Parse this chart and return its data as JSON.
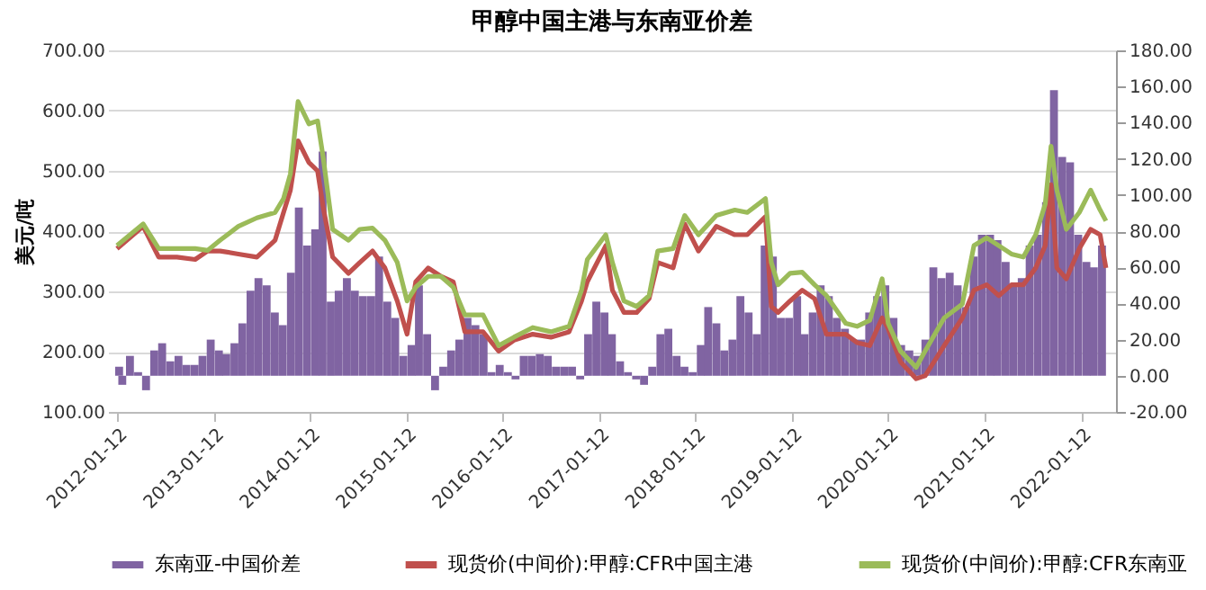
{
  "chart_data": {
    "type": "line",
    "title": "甲醇中国主港与东南亚价差",
    "ylabel": "美元/吨",
    "xlim": [
      "2012-01-12",
      "2022-04-20"
    ],
    "xticks": [
      "2012-01-12",
      "2013-01-12",
      "2014-01-12",
      "2015-01-12",
      "2016-01-12",
      "2017-01-12",
      "2018-01-12",
      "2019-01-12",
      "2020-01-12",
      "2021-01-12",
      "2022-01-12"
    ],
    "ylim": [
      100,
      700
    ],
    "yticks": [
      {
        "value": 100,
        "label": "100.00"
      },
      {
        "value": 200,
        "label": "200.00"
      },
      {
        "value": 300,
        "label": "300.00"
      },
      {
        "value": 400,
        "label": "400.00"
      },
      {
        "value": 500,
        "label": "500.00"
      },
      {
        "value": 600,
        "label": "600.00"
      },
      {
        "value": 700,
        "label": "700.00"
      }
    ],
    "y2lim": [
      -20,
      180
    ],
    "y2ticks": [
      {
        "value": -20,
        "label": "-20.00"
      },
      {
        "value": 0,
        "label": "0.00"
      },
      {
        "value": 20,
        "label": "20.00"
      },
      {
        "value": 40,
        "label": "40.00"
      },
      {
        "value": 60,
        "label": "60.00"
      },
      {
        "value": 80,
        "label": "80.00"
      },
      {
        "value": 100,
        "label": "100.00"
      },
      {
        "value": 120,
        "label": "120.00"
      },
      {
        "value": 140,
        "label": "140.00"
      },
      {
        "value": 160,
        "label": "160.00"
      },
      {
        "value": 180,
        "label": "180.00"
      }
    ],
    "grid": "y",
    "legend": "bottom",
    "x": [
      "2012-01-12",
      "2012-04-20",
      "2012-06-18",
      "2012-08-26",
      "2012-11-03",
      "2012-12-20",
      "2013-02-06",
      "2013-04-16",
      "2013-06-25",
      "2013-09-02",
      "2013-10-04",
      "2013-10-30",
      "2013-11-28",
      "2014-01-08",
      "2014-02-10",
      "2014-03-03",
      "2014-04-08",
      "2014-06-07",
      "2014-07-20",
      "2014-09-06",
      "2014-10-23",
      "2014-12-09",
      "2015-01-15",
      "2015-02-17",
      "2015-04-05",
      "2015-05-23",
      "2015-07-09",
      "2015-08-22",
      "2015-10-30",
      "2015-12-28",
      "2016-02-24",
      "2016-05-05",
      "2016-07-13",
      "2016-09-20",
      "2016-11-06",
      "2016-11-28",
      "2017-02-06",
      "2017-03-03",
      "2017-04-16",
      "2017-06-03",
      "2017-07-20",
      "2017-08-22",
      "2017-10-19",
      "2017-12-02",
      "2018-01-23",
      "2018-04-01",
      "2018-06-10",
      "2018-07-27",
      "2018-10-04",
      "2018-10-26",
      "2018-11-21",
      "2019-01-05",
      "2019-02-20",
      "2019-04-08",
      "2019-05-23",
      "2019-08-04",
      "2019-09-16",
      "2019-11-03",
      "2019-12-20",
      "2020-01-12",
      "2020-02-28",
      "2020-04-27",
      "2020-05-31",
      "2020-08-11",
      "2020-10-19",
      "2020-12-02",
      "2021-01-19",
      "2021-03-06",
      "2021-04-23",
      "2021-06-07",
      "2021-07-24",
      "2021-08-29",
      "2021-09-20",
      "2021-10-12",
      "2021-11-17",
      "2022-01-05",
      "2022-02-17",
      "2022-03-25",
      "2022-04-16"
    ],
    "series": [
      {
        "name": "东南亚-中国价差",
        "type": "bar",
        "axis": "y2",
        "color": "#8064a2",
        "x": [
          "2012-01-20",
          "2012-02",
          "2012-03",
          "2012-04",
          "2012-05",
          "2012-06",
          "2012-07",
          "2012-08",
          "2012-09",
          "2012-10",
          "2012-11",
          "2012-12",
          "2013-01",
          "2013-02",
          "2013-03",
          "2013-04",
          "2013-05",
          "2013-06",
          "2013-07",
          "2013-08",
          "2013-09",
          "2013-10",
          "2013-11",
          "2013-12",
          "2014-01",
          "2014-02",
          "2014-03",
          "2014-04",
          "2014-05",
          "2014-06",
          "2014-07",
          "2014-08",
          "2014-09",
          "2014-10",
          "2014-11",
          "2014-12",
          "2015-01",
          "2015-02",
          "2015-03",
          "2015-04",
          "2015-05",
          "2015-06",
          "2015-07",
          "2015-08",
          "2015-09",
          "2015-10",
          "2015-11",
          "2015-12",
          "2016-01",
          "2016-02",
          "2016-03",
          "2016-04",
          "2016-05",
          "2016-06",
          "2016-07",
          "2016-08",
          "2016-09",
          "2016-10",
          "2016-11",
          "2016-12",
          "2017-01",
          "2017-02",
          "2017-03",
          "2017-04",
          "2017-05",
          "2017-06",
          "2017-07",
          "2017-08",
          "2017-09",
          "2017-10",
          "2017-11",
          "2017-12",
          "2018-01",
          "2018-02",
          "2018-03",
          "2018-04",
          "2018-05",
          "2018-06",
          "2018-07",
          "2018-08",
          "2018-09",
          "2018-10",
          "2018-11",
          "2018-12",
          "2019-01",
          "2019-02",
          "2019-03",
          "2019-04",
          "2019-05",
          "2019-06",
          "2019-07",
          "2019-08",
          "2019-09",
          "2019-10",
          "2019-11",
          "2019-12",
          "2020-01",
          "2020-02",
          "2020-03",
          "2020-04",
          "2020-05",
          "2020-06",
          "2020-07",
          "2020-08",
          "2020-09",
          "2020-10",
          "2020-11",
          "2020-12",
          "2021-01",
          "2021-02",
          "2021-03",
          "2021-04",
          "2021-05",
          "2021-06",
          "2021-07",
          "2021-08",
          "2021-09",
          "2021-10",
          "2021-11",
          "2021-12",
          "2022-01",
          "2022-02",
          "2022-03",
          "2022-04"
        ],
        "values": [
          5,
          -5,
          11,
          2,
          -8,
          14,
          18,
          8,
          11,
          6,
          6,
          11,
          20,
          14,
          12,
          18,
          29,
          47,
          54,
          50,
          35,
          28,
          57,
          93,
          72,
          81,
          124,
          41,
          47,
          54,
          47,
          44,
          44,
          66,
          41,
          32,
          11,
          17,
          50,
          23,
          -8,
          5,
          14,
          20,
          32,
          28,
          23,
          2,
          6,
          2,
          -2,
          11,
          11,
          12,
          11,
          5,
          5,
          5,
          -2,
          23,
          41,
          35,
          23,
          8,
          2,
          -2,
          -5,
          5,
          23,
          26,
          11,
          5,
          2,
          17,
          38,
          29,
          14,
          20,
          44,
          35,
          23,
          72,
          66,
          32,
          32,
          44,
          23,
          35,
          50,
          44,
          32,
          26,
          20,
          20,
          35,
          44,
          50,
          32,
          17,
          14,
          11,
          20,
          60,
          54,
          57,
          50,
          38,
          66,
          78,
          78,
          75,
          63,
          50,
          54,
          72,
          78,
          96,
          158,
          121,
          118,
          78,
          63,
          60,
          72
        ]
      },
      {
        "name": "现货价(中间价):甲醇:CFR中国主港",
        "color": "#c0504d",
        "values": [
          371,
          408,
          357,
          357,
          353,
          367,
          367,
          362,
          357,
          385,
          431,
          468,
          550,
          514,
          500,
          440,
          357,
          330,
          348,
          367,
          339,
          284,
          229,
          316,
          339,
          325,
          316,
          233,
          233,
          201,
          219,
          229,
          224,
          233,
          284,
          316,
          376,
          302,
          265,
          265,
          288,
          348,
          339,
          412,
          367,
          408,
          394,
          394,
          424,
          275,
          265,
          284,
          302,
          288,
          229,
          229,
          215,
          210,
          256,
          238,
          183,
          155,
          160,
          210,
          256,
          302,
          311,
          293,
          311,
          311,
          339,
          376,
          477,
          339,
          321,
          371,
          403,
          394,
          339
        ]
      },
      {
        "name": "现货价(中间价):甲醇:CFR东南亚",
        "color": "#9bbb59",
        "values": [
          376,
          412,
          371,
          371,
          371,
          368,
          385,
          408,
          422,
          431,
          454,
          495,
          615,
          578,
          583,
          523,
          403,
          385,
          403,
          405,
          385,
          348,
          284,
          307,
          325,
          325,
          307,
          261,
          261,
          210,
          224,
          240,
          233,
          242,
          302,
          353,
          394,
          348,
          284,
          275,
          293,
          367,
          371,
          426,
          394,
          426,
          435,
          431,
          454,
          348,
          311,
          330,
          332,
          311,
          293,
          247,
          242,
          252,
          321,
          247,
          201,
          174,
          201,
          256,
          279,
          376,
          389,
          376,
          362,
          357,
          394,
          445,
          541,
          468,
          403,
          431,
          468,
          435,
          417
        ]
      }
    ]
  }
}
